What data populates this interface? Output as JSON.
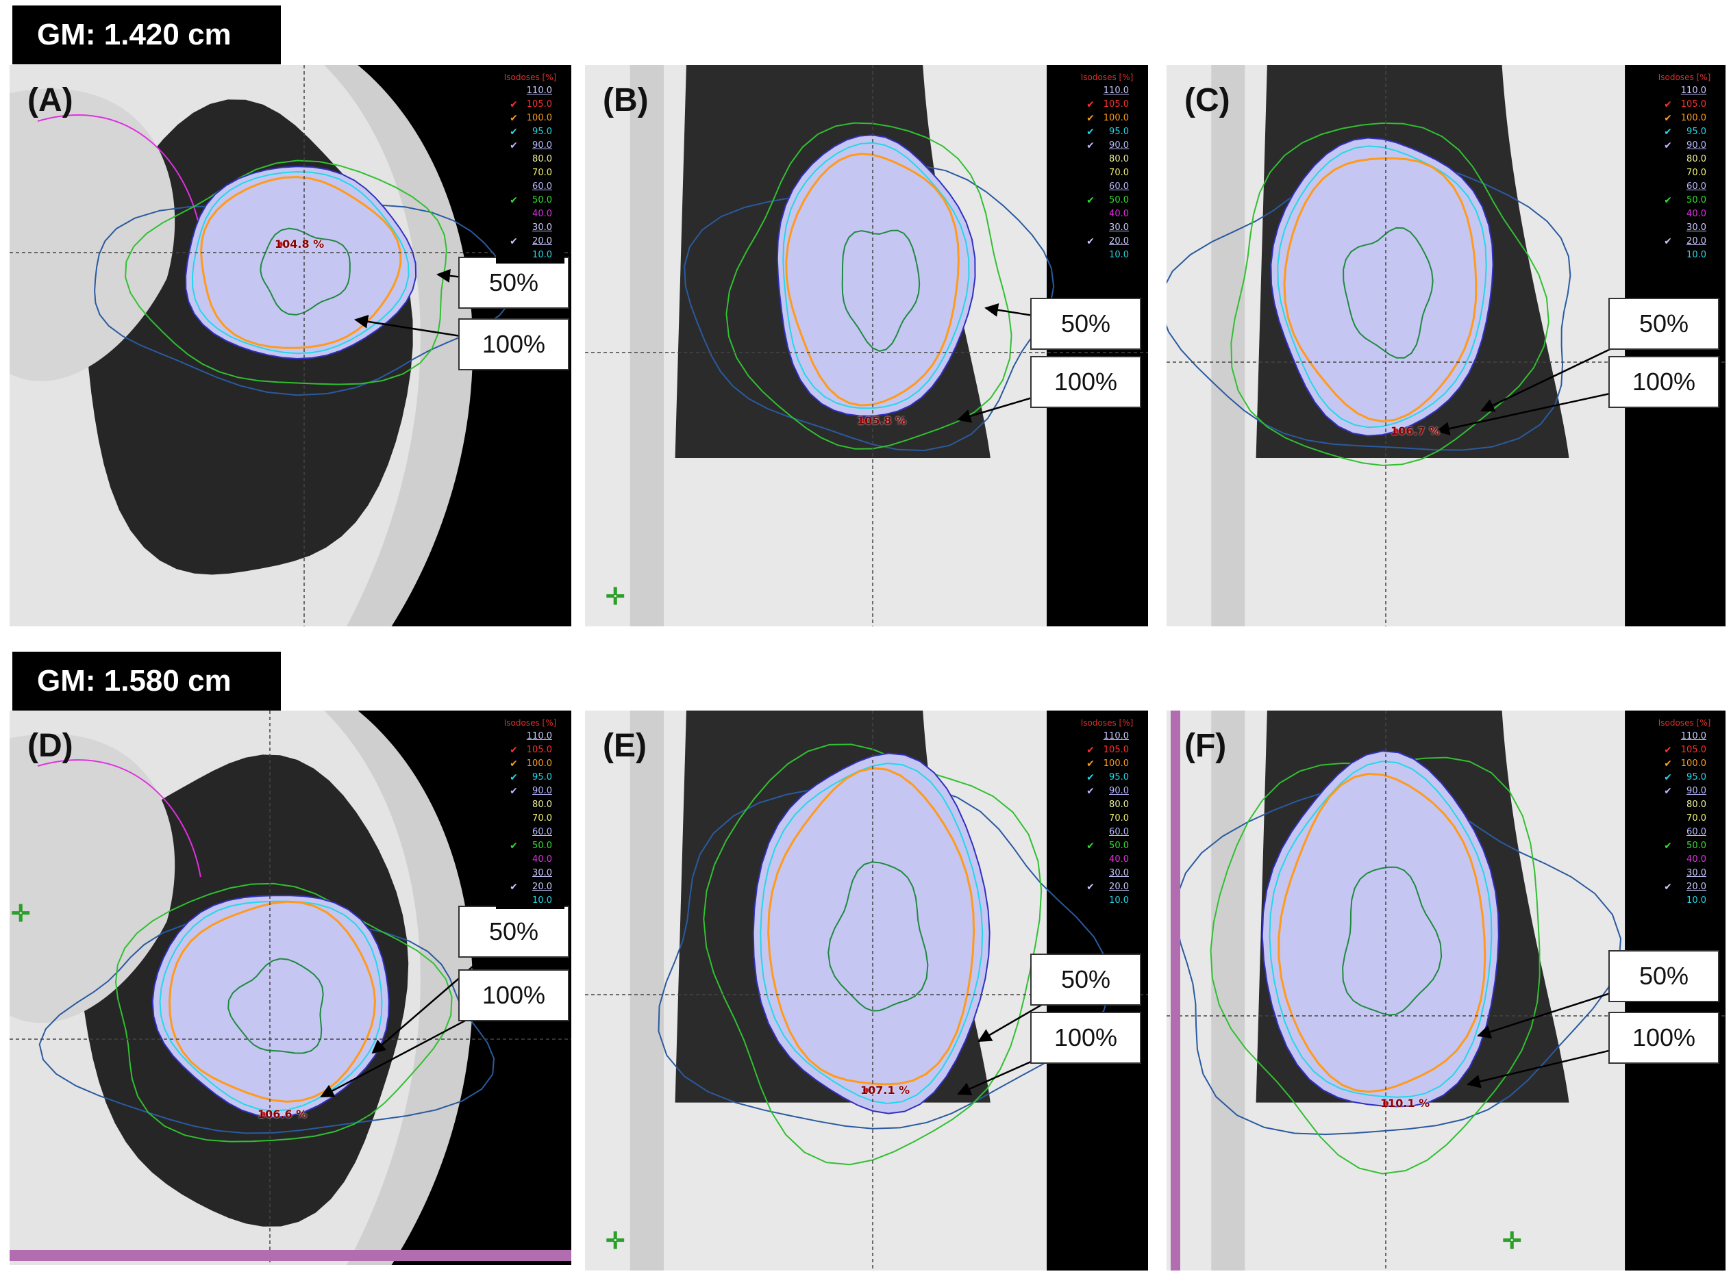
{
  "groups": [
    {
      "gm_label": "GM: 1.420 cm"
    },
    {
      "gm_label": "GM: 1.580 cm"
    }
  ],
  "panels": [
    {
      "id": "A",
      "letter": "(A)",
      "hotspot": "104.8 %",
      "label_50": "50%",
      "label_100": "100%"
    },
    {
      "id": "B",
      "letter": "(B)",
      "hotspot": "105.8 %",
      "label_50": "50%",
      "label_100": "100%"
    },
    {
      "id": "C",
      "letter": "(C)",
      "hotspot": "106.7 %",
      "label_50": "50%",
      "label_100": "100%"
    },
    {
      "id": "D",
      "letter": "(D)",
      "hotspot": "106.6 %",
      "label_50": "50%",
      "label_100": "100%"
    },
    {
      "id": "E",
      "letter": "(E)",
      "hotspot": "107.1 %",
      "label_50": "50%",
      "label_100": "100%"
    },
    {
      "id": "F",
      "letter": "(F)",
      "hotspot": "110.1 %",
      "label_50": "50%",
      "label_100": "100%"
    }
  ],
  "legend": {
    "title": "Isodoses [%]",
    "rows": [
      {
        "value": "110.0",
        "color": "#c8c8ff",
        "check": "",
        "underline": true
      },
      {
        "value": "105.0",
        "color": "#ff3030",
        "check": "✔",
        "underline": false
      },
      {
        "value": "100.0",
        "color": "#ff9a1a",
        "check": "✔",
        "underline": false
      },
      {
        "value": "95.0",
        "color": "#22d8e8",
        "check": "✔",
        "underline": false
      },
      {
        "value": "90.0",
        "color": "#b8b8ff",
        "check": "✔",
        "underline": true
      },
      {
        "value": "80.0",
        "color": "#f0f0a0",
        "check": "",
        "underline": false
      },
      {
        "value": "70.0",
        "color": "#f0f070",
        "check": "",
        "underline": false
      },
      {
        "value": "60.0",
        "color": "#b8b8ff",
        "check": "",
        "underline": true
      },
      {
        "value": "50.0",
        "color": "#30e030",
        "check": "✔",
        "underline": false
      },
      {
        "value": "40.0",
        "color": "#e030e0",
        "check": "",
        "underline": false
      },
      {
        "value": "30.0",
        "color": "#c8c8ff",
        "check": "",
        "underline": true
      },
      {
        "value": "20.0",
        "color": "#c8c8ff",
        "check": "✔",
        "underline": true
      },
      {
        "value": "10.0",
        "color": "#22d8e8",
        "check": "",
        "underline": false
      }
    ]
  },
  "colors": {
    "iso_110": "#c8c8ff",
    "iso_105": "#ff3030",
    "iso_100": "#ff9a1a",
    "iso_95": "#22d8e8",
    "iso_90": "#3030c0",
    "iso_50": "#30c030",
    "iso_40": "#e030e0",
    "iso_20": "#2a5aa0",
    "target_fill": "#c6c6f2",
    "lung": "#2a2a2a",
    "tissue": "#d8d8d8"
  }
}
